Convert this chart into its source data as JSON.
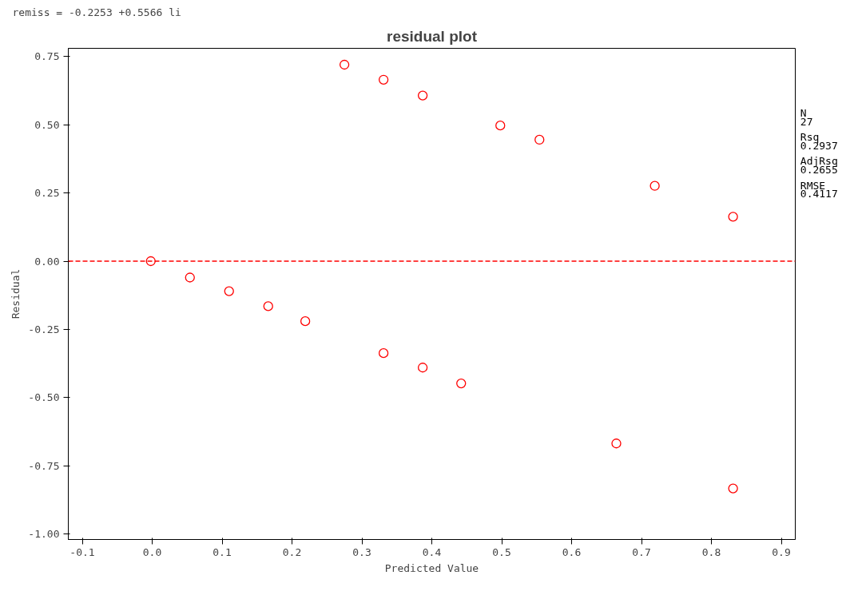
{
  "chart_data": {
    "type": "scatter",
    "title": "residual plot",
    "xlabel": "Predicted Value",
    "ylabel": "Residual",
    "annotations": [
      "remiss = -0.2253 +0.5566 li",
      "N",
      "27",
      "Rsq",
      "0.2937",
      "AdjRsq",
      "0.2655",
      "RMSE",
      "0.4117"
    ],
    "series": [
      {
        "color": "#ff0000",
        "x": [
          -0.002,
          0.054,
          0.11,
          0.166,
          0.219,
          0.275,
          0.331,
          0.331,
          0.387,
          0.387,
          0.442,
          0.498,
          0.554,
          0.664,
          0.719,
          0.831,
          0.831
        ],
        "values": [
          0.0,
          -0.06,
          -0.11,
          -0.165,
          -0.22,
          0.72,
          0.665,
          -0.337,
          0.607,
          -0.39,
          -0.448,
          0.497,
          0.445,
          -0.668,
          0.276,
          0.163,
          -0.833
        ]
      }
    ],
    "xlim": [
      -0.12,
      0.92
    ],
    "ylim": [
      -1.02,
      0.78
    ],
    "xticks": [
      {
        "value": -0.1,
        "label": "-0.1"
      },
      {
        "value": 0,
        "label": "0.0"
      },
      {
        "value": 0.1,
        "label": "0.1"
      },
      {
        "value": 0.2,
        "label": "0.2"
      },
      {
        "value": 0.3,
        "label": "0.3"
      },
      {
        "value": 0.4,
        "label": "0.4"
      },
      {
        "value": 0.5,
        "label": "0.5"
      },
      {
        "value": 0.6,
        "label": "0.6"
      },
      {
        "value": 0.7,
        "label": "0.7"
      },
      {
        "value": 0.8,
        "label": "0.8"
      },
      {
        "value": 0.9,
        "label": "0.9"
      }
    ],
    "yticks": [
      {
        "value": 0.75,
        "label": "0.75"
      },
      {
        "value": 0.5,
        "label": "0.50"
      },
      {
        "value": 0.25,
        "label": "0.25"
      },
      {
        "value": 0,
        "label": "0.00"
      },
      {
        "value": -0.25,
        "label": "-0.25"
      },
      {
        "value": -0.5,
        "label": "-0.50"
      },
      {
        "value": -0.75,
        "label": "-0.75"
      },
      {
        "value": -1,
        "label": "-1.00"
      }
    ],
    "ref_lines": [
      {
        "axis": "y",
        "value": 0,
        "color": "#ff0000",
        "line_style": "dashed"
      }
    ],
    "marker": "circle",
    "grid": false
  }
}
